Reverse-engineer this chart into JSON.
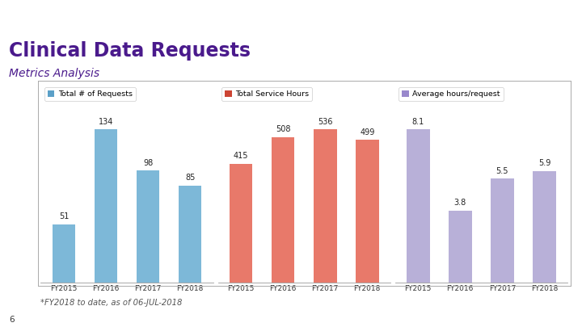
{
  "title": "Clinical Data Requests",
  "subtitle": "Metrics Analysis",
  "title_color": "#4a1a8c",
  "header_bar_color": "#5b2d8e",
  "background_color": "#ffffff",
  "footer_note": "*FY2018 to date, as of 06-JUL-2018",
  "page_number": "6",
  "categories": [
    "FY2015",
    "FY2016",
    "FY2017",
    "FY2018"
  ],
  "chart1": {
    "legend_label": "Total # of Requests",
    "values": [
      51,
      134,
      98,
      85
    ],
    "bar_color": "#7db8d8",
    "legend_color": "#5ba0c8"
  },
  "chart2": {
    "legend_label": "Total Service Hours",
    "values": [
      415,
      508,
      536,
      499
    ],
    "bar_color": "#e8796a",
    "legend_color": "#cc4433"
  },
  "chart3": {
    "legend_label": "Average hours/request",
    "values": [
      8.1,
      3.8,
      5.5,
      5.9
    ],
    "bar_color": "#b8b0d8",
    "legend_color": "#9988cc"
  }
}
